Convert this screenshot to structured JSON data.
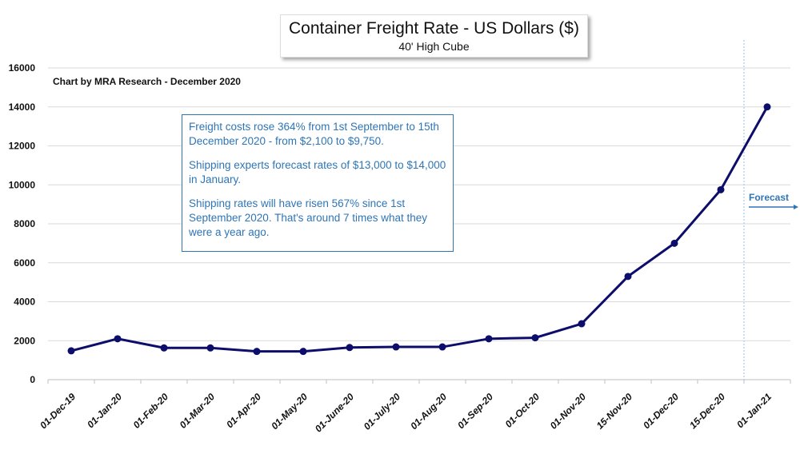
{
  "chart_data": {
    "type": "line",
    "title": "Container Freight Rate - US Dollars ($)",
    "subtitle": "40' High Cube",
    "credit": "Chart by MRA Research - December 2020",
    "categories": [
      "01-Dec-19",
      "01-Jan-20",
      "01-Feb-20",
      "01-Mar-20",
      "01-Apr-20",
      "01-May-20",
      "01-June-20",
      "01-July-20",
      "01-Aug-20",
      "01-Sep-20",
      "01-Oct-20",
      "01-Nov-20",
      "15-Nov-20",
      "01-Dec-20",
      "15-Dec-20",
      "01-Jan-21"
    ],
    "values": [
      1480,
      2100,
      1630,
      1630,
      1450,
      1450,
      1650,
      1680,
      1680,
      2100,
      2150,
      2870,
      5300,
      7000,
      9750,
      14000
    ],
    "ylim": [
      0,
      16000
    ],
    "yticks": [
      0,
      2000,
      4000,
      6000,
      8000,
      10000,
      12000,
      14000,
      16000
    ],
    "grid": true,
    "legend": "none",
    "line_color": "#0d0d6b",
    "annotation_color": "#2e75b6",
    "forecast_boundary_after": "15-Dec-20",
    "forecast_label": "Forecast",
    "annotation": [
      "Freight costs rose 364% from 1st September to 15th December 2020 - from $2,100 to $9,750.",
      "Shipping experts forecast rates of $13,000 to $14,000 in January.",
      "Shipping rates will have risen 567% since 1st September 2020. That's around 7 times what they were a year ago."
    ]
  }
}
